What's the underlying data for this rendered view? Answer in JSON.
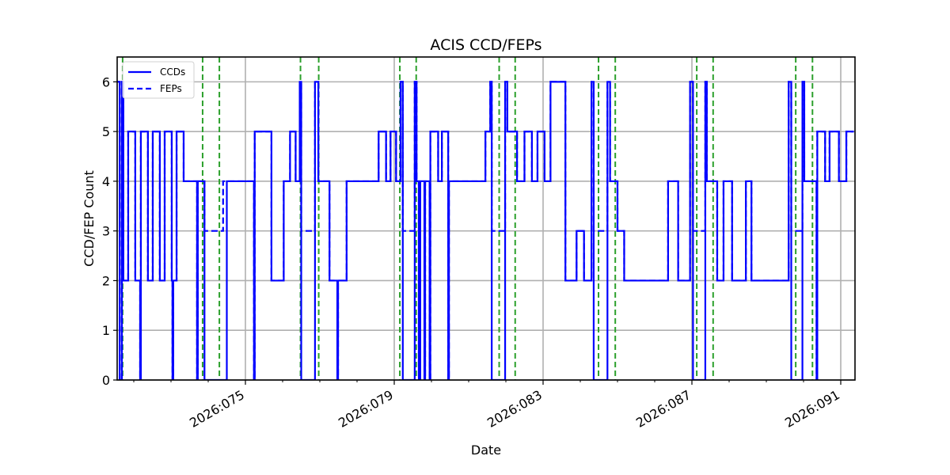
{
  "chart_data": {
    "type": "line",
    "subtype": "step",
    "title": "ACIS CCD/FEPs",
    "xlabel": "Date",
    "ylabel": "CCD/FEP Count",
    "xlim_day": [
      71.55,
      91.35
    ],
    "ylim": [
      0,
      6.5
    ],
    "x_ticks": [
      {
        "day": 75,
        "label": "2026:075"
      },
      {
        "day": 79,
        "label": "2026:079"
      },
      {
        "day": 83,
        "label": "2026:083"
      },
      {
        "day": 87,
        "label": "2026:087"
      },
      {
        "day": 91,
        "label": "2026:091"
      }
    ],
    "x_minor_tick_days": [
      72,
      73,
      74,
      76,
      77,
      78,
      80,
      81,
      82,
      84,
      85,
      86,
      88,
      89,
      90
    ],
    "y_ticks": [
      0,
      1,
      2,
      3,
      4,
      5,
      6
    ],
    "grid": true,
    "legend": {
      "position": "upper left",
      "entries": [
        "CCDs",
        "FEPs"
      ]
    },
    "series": [
      {
        "name": "CCDs",
        "style": "solid",
        "color": "#0000ff",
        "points": [
          [
            71.55,
            6
          ],
          [
            71.62,
            0
          ],
          [
            71.68,
            6
          ],
          [
            71.72,
            2
          ],
          [
            71.85,
            5
          ],
          [
            72.04,
            2
          ],
          [
            72.17,
            0
          ],
          [
            72.19,
            5
          ],
          [
            72.38,
            2
          ],
          [
            72.51,
            5
          ],
          [
            72.7,
            2
          ],
          [
            72.83,
            5
          ],
          [
            73.02,
            2
          ],
          [
            73.04,
            0
          ],
          [
            73.06,
            2
          ],
          [
            73.15,
            5
          ],
          [
            73.34,
            4
          ],
          [
            73.7,
            0
          ],
          [
            73.72,
            4
          ],
          [
            73.9,
            0
          ],
          [
            74.5,
            4
          ],
          [
            75.23,
            0
          ],
          [
            75.25,
            5
          ],
          [
            75.7,
            2
          ],
          [
            76.03,
            4
          ],
          [
            76.2,
            5
          ],
          [
            76.35,
            4
          ],
          [
            76.46,
            6
          ],
          [
            76.5,
            0
          ],
          [
            76.87,
            6
          ],
          [
            76.96,
            4
          ],
          [
            77.26,
            2
          ],
          [
            77.47,
            0
          ],
          [
            77.49,
            2
          ],
          [
            77.72,
            4
          ],
          [
            78.58,
            5
          ],
          [
            78.78,
            4
          ],
          [
            78.9,
            5
          ],
          [
            79.05,
            4
          ],
          [
            79.17,
            6
          ],
          [
            79.23,
            0
          ],
          [
            79.55,
            6
          ],
          [
            79.6,
            4
          ],
          [
            79.66,
            0
          ],
          [
            79.7,
            4
          ],
          [
            79.81,
            0
          ],
          [
            79.83,
            4
          ],
          [
            79.95,
            0
          ],
          [
            79.97,
            5
          ],
          [
            80.18,
            4
          ],
          [
            80.28,
            5
          ],
          [
            80.45,
            0
          ],
          [
            80.47,
            4
          ],
          [
            81.45,
            5
          ],
          [
            81.58,
            6
          ],
          [
            81.62,
            0
          ],
          [
            81.98,
            6
          ],
          [
            82.04,
            5
          ],
          [
            82.3,
            4
          ],
          [
            82.5,
            5
          ],
          [
            82.7,
            4
          ],
          [
            82.85,
            5
          ],
          [
            83.04,
            4
          ],
          [
            83.2,
            6
          ],
          [
            83.6,
            2
          ],
          [
            83.9,
            3
          ],
          [
            84.1,
            2
          ],
          [
            84.3,
            6
          ],
          [
            84.36,
            0
          ],
          [
            84.73,
            6
          ],
          [
            84.8,
            4
          ],
          [
            85.0,
            3
          ],
          [
            85.18,
            2
          ],
          [
            86.36,
            4
          ],
          [
            86.63,
            2
          ],
          [
            86.95,
            6
          ],
          [
            87.03,
            0
          ],
          [
            87.36,
            6
          ],
          [
            87.4,
            4
          ],
          [
            87.68,
            2
          ],
          [
            87.85,
            4
          ],
          [
            88.08,
            2
          ],
          [
            88.45,
            4
          ],
          [
            88.6,
            2
          ],
          [
            89.6,
            6
          ],
          [
            89.67,
            0
          ],
          [
            89.97,
            6
          ],
          [
            90.02,
            4
          ],
          [
            90.35,
            0
          ],
          [
            90.37,
            5
          ],
          [
            90.58,
            4
          ],
          [
            90.7,
            5
          ],
          [
            90.95,
            4
          ],
          [
            91.15,
            5
          ],
          [
            91.35,
            5
          ]
        ]
      },
      {
        "name": "FEPs",
        "style": "dashed",
        "color": "#0000ff",
        "points": [
          [
            71.55,
            6
          ],
          [
            71.62,
            0
          ],
          [
            71.68,
            6
          ],
          [
            71.72,
            2
          ],
          [
            71.85,
            5
          ],
          [
            72.04,
            2
          ],
          [
            72.17,
            0
          ],
          [
            72.19,
            5
          ],
          [
            72.38,
            2
          ],
          [
            72.51,
            5
          ],
          [
            72.7,
            2
          ],
          [
            72.83,
            5
          ],
          [
            73.02,
            2
          ],
          [
            73.04,
            0
          ],
          [
            73.06,
            2
          ],
          [
            73.15,
            5
          ],
          [
            73.34,
            4
          ],
          [
            73.7,
            0
          ],
          [
            73.72,
            4
          ],
          [
            73.9,
            3
          ],
          [
            74.4,
            4
          ],
          [
            75.23,
            0
          ],
          [
            75.25,
            5
          ],
          [
            75.7,
            2
          ],
          [
            76.03,
            4
          ],
          [
            76.2,
            5
          ],
          [
            76.35,
            4
          ],
          [
            76.46,
            6
          ],
          [
            76.5,
            3
          ],
          [
            76.87,
            6
          ],
          [
            76.96,
            4
          ],
          [
            77.26,
            2
          ],
          [
            77.47,
            0
          ],
          [
            77.49,
            2
          ],
          [
            77.72,
            4
          ],
          [
            78.58,
            5
          ],
          [
            78.78,
            4
          ],
          [
            78.9,
            5
          ],
          [
            79.05,
            4
          ],
          [
            79.17,
            6
          ],
          [
            79.23,
            3
          ],
          [
            79.55,
            6
          ],
          [
            79.6,
            4
          ],
          [
            79.66,
            0
          ],
          [
            79.7,
            4
          ],
          [
            79.81,
            0
          ],
          [
            79.83,
            4
          ],
          [
            79.95,
            0
          ],
          [
            79.97,
            5
          ],
          [
            80.18,
            4
          ],
          [
            80.28,
            5
          ],
          [
            80.45,
            0
          ],
          [
            80.47,
            4
          ],
          [
            81.45,
            5
          ],
          [
            81.58,
            6
          ],
          [
            81.62,
            3
          ],
          [
            81.98,
            6
          ],
          [
            82.04,
            5
          ],
          [
            82.3,
            4
          ],
          [
            82.5,
            5
          ],
          [
            82.7,
            4
          ],
          [
            82.85,
            5
          ],
          [
            83.04,
            4
          ],
          [
            83.2,
            6
          ],
          [
            83.6,
            2
          ],
          [
            83.9,
            3
          ],
          [
            84.1,
            2
          ],
          [
            84.3,
            6
          ],
          [
            84.36,
            3
          ],
          [
            84.73,
            6
          ],
          [
            84.8,
            4
          ],
          [
            85.0,
            3
          ],
          [
            85.18,
            2
          ],
          [
            86.36,
            4
          ],
          [
            86.63,
            2
          ],
          [
            86.95,
            6
          ],
          [
            87.03,
            3
          ],
          [
            87.36,
            6
          ],
          [
            87.4,
            4
          ],
          [
            87.68,
            2
          ],
          [
            87.85,
            4
          ],
          [
            88.08,
            2
          ],
          [
            88.45,
            4
          ],
          [
            88.6,
            2
          ],
          [
            89.6,
            6
          ],
          [
            89.67,
            3
          ],
          [
            89.97,
            6
          ],
          [
            90.02,
            4
          ],
          [
            90.35,
            0
          ],
          [
            90.37,
            5
          ],
          [
            90.58,
            4
          ],
          [
            90.7,
            5
          ],
          [
            90.95,
            4
          ],
          [
            91.15,
            5
          ],
          [
            91.35,
            5
          ]
        ]
      }
    ],
    "vertical_markers": {
      "style": "dashed",
      "color": "#2ca02c",
      "days": [
        71.7,
        73.85,
        74.3,
        76.48,
        76.97,
        79.15,
        79.59,
        81.82,
        82.25,
        84.49,
        84.94,
        87.13,
        87.57,
        89.79,
        90.24
      ]
    }
  }
}
